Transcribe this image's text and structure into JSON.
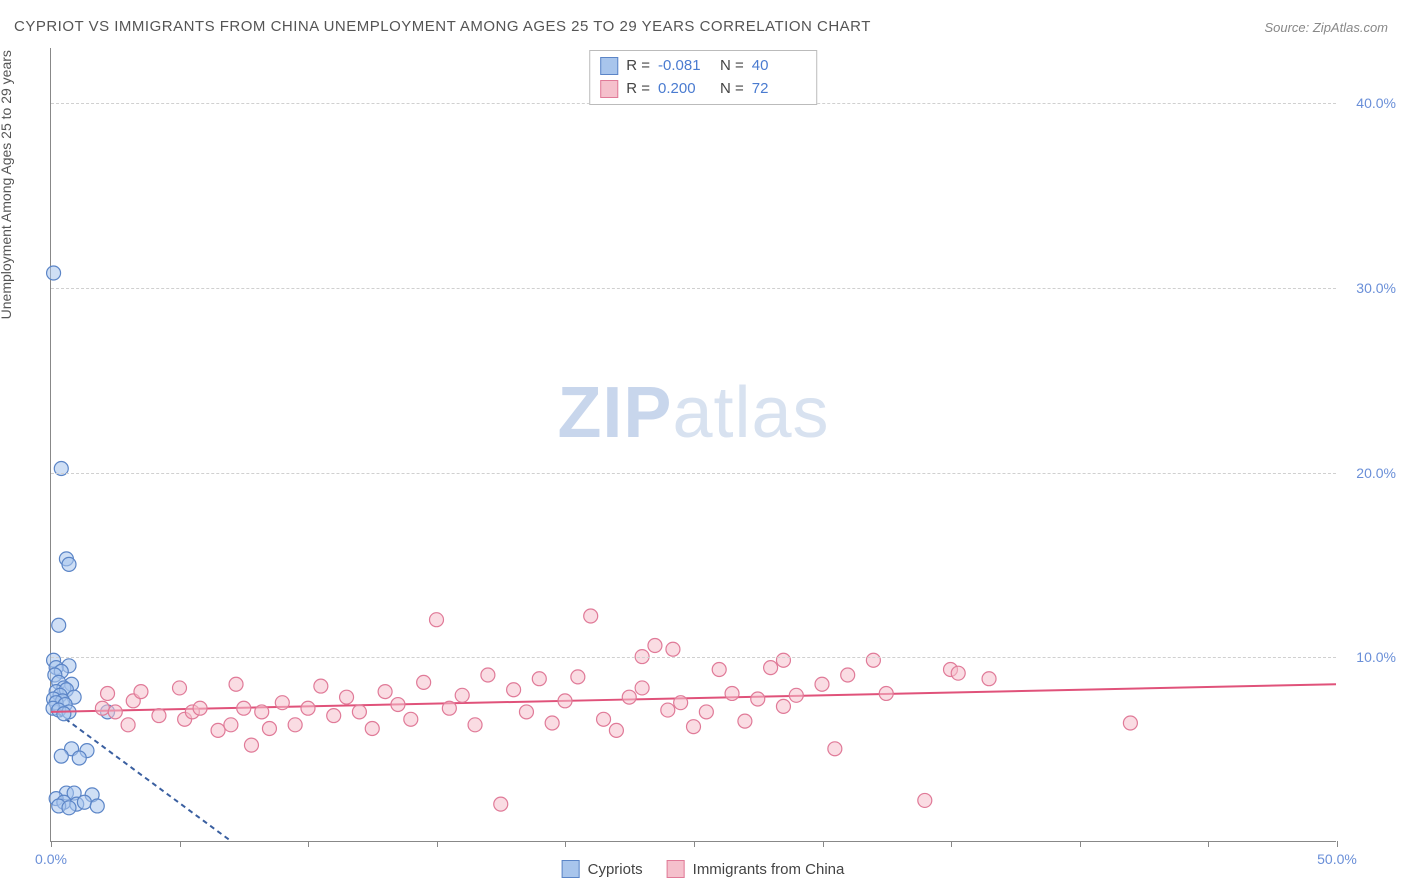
{
  "title": "CYPRIOT VS IMMIGRANTS FROM CHINA UNEMPLOYMENT AMONG AGES 25 TO 29 YEARS CORRELATION CHART",
  "source": "Source: ZipAtlas.com",
  "watermark_a": "ZIP",
  "watermark_b": "atlas",
  "y_axis_label": "Unemployment Among Ages 25 to 29 years",
  "chart": {
    "type": "scatter-with-regression",
    "background_color": "#ffffff",
    "grid_color": "#d0d0d0",
    "axis_color": "#888888",
    "tick_label_color": "#6a8fd8",
    "xlim": [
      0,
      50
    ],
    "ylim": [
      0,
      43
    ],
    "x_ticks": [
      0,
      5,
      10,
      15,
      20,
      25,
      30,
      35,
      40,
      45,
      50
    ],
    "x_tick_labels": {
      "0": "0.0%",
      "50": "50.0%"
    },
    "y_ticks": [
      10,
      20,
      30,
      40
    ],
    "y_tick_labels": {
      "10": "10.0%",
      "20": "20.0%",
      "30": "30.0%",
      "40": "40.0%"
    },
    "series": [
      {
        "name": "Cypriots",
        "marker_fill": "#a8c5ec",
        "marker_stroke": "#5b85c7",
        "marker_fill_opacity": 0.55,
        "marker_radius": 7,
        "regression_color": "#3a5fa0",
        "regression_dash": "5,4",
        "regression": {
          "x1": 0,
          "y1": 7.2,
          "x2": 7,
          "y2": 0
        },
        "R_label": "R =",
        "R": "-0.081",
        "N_label": "N =",
        "N": "40",
        "points": [
          [
            0.1,
            30.8
          ],
          [
            0.4,
            20.2
          ],
          [
            0.6,
            15.3
          ],
          [
            0.7,
            15.0
          ],
          [
            0.3,
            11.7
          ],
          [
            0.1,
            9.8
          ],
          [
            0.7,
            9.5
          ],
          [
            0.2,
            9.4
          ],
          [
            0.4,
            9.2
          ],
          [
            0.15,
            9.0
          ],
          [
            0.3,
            8.6
          ],
          [
            0.8,
            8.5
          ],
          [
            0.5,
            8.3
          ],
          [
            0.2,
            8.1
          ],
          [
            0.6,
            8.2
          ],
          [
            0.35,
            7.9
          ],
          [
            0.9,
            7.8
          ],
          [
            0.1,
            7.7
          ],
          [
            0.45,
            7.6
          ],
          [
            0.2,
            7.5
          ],
          [
            0.55,
            7.4
          ],
          [
            0.08,
            7.2
          ],
          [
            0.3,
            7.1
          ],
          [
            0.7,
            7.0
          ],
          [
            0.5,
            6.9
          ],
          [
            2.2,
            7.0
          ],
          [
            0.8,
            5.0
          ],
          [
            1.4,
            4.9
          ],
          [
            0.4,
            4.6
          ],
          [
            1.1,
            4.5
          ],
          [
            0.6,
            2.6
          ],
          [
            0.9,
            2.6
          ],
          [
            1.6,
            2.5
          ],
          [
            0.2,
            2.3
          ],
          [
            0.5,
            2.1
          ],
          [
            1.0,
            2.0
          ],
          [
            1.3,
            2.1
          ],
          [
            0.3,
            1.9
          ],
          [
            0.7,
            1.8
          ],
          [
            1.8,
            1.9
          ]
        ]
      },
      {
        "name": "Immigrants from China",
        "marker_fill": "#f5c0cc",
        "marker_stroke": "#e07a98",
        "marker_fill_opacity": 0.55,
        "marker_radius": 7,
        "regression_color": "#e0527a",
        "regression_dash": "none",
        "regression": {
          "x1": 0,
          "y1": 7.0,
          "x2": 50,
          "y2": 8.5
        },
        "R_label": "R =",
        "R": "0.200",
        "N_label": "N =",
        "N": "72",
        "points": [
          [
            2.0,
            7.2
          ],
          [
            2.5,
            7.0
          ],
          [
            2.2,
            8.0
          ],
          [
            3.0,
            6.3
          ],
          [
            3.2,
            7.6
          ],
          [
            3.5,
            8.1
          ],
          [
            4.2,
            6.8
          ],
          [
            5.0,
            8.3
          ],
          [
            5.2,
            6.6
          ],
          [
            5.5,
            7.0
          ],
          [
            5.8,
            7.2
          ],
          [
            6.5,
            6.0
          ],
          [
            7.0,
            6.3
          ],
          [
            7.2,
            8.5
          ],
          [
            7.5,
            7.2
          ],
          [
            7.8,
            5.2
          ],
          [
            8.2,
            7.0
          ],
          [
            8.5,
            6.1
          ],
          [
            9.0,
            7.5
          ],
          [
            9.5,
            6.3
          ],
          [
            10.0,
            7.2
          ],
          [
            10.5,
            8.4
          ],
          [
            11.0,
            6.8
          ],
          [
            11.5,
            7.8
          ],
          [
            12.0,
            7.0
          ],
          [
            12.5,
            6.1
          ],
          [
            13.0,
            8.1
          ],
          [
            13.5,
            7.4
          ],
          [
            14.0,
            6.6
          ],
          [
            14.5,
            8.6
          ],
          [
            15.0,
            12.0
          ],
          [
            15.5,
            7.2
          ],
          [
            16.0,
            7.9
          ],
          [
            16.5,
            6.3
          ],
          [
            17.0,
            9.0
          ],
          [
            17.5,
            2.0
          ],
          [
            18.0,
            8.2
          ],
          [
            18.5,
            7.0
          ],
          [
            19.0,
            8.8
          ],
          [
            19.5,
            6.4
          ],
          [
            20.0,
            7.6
          ],
          [
            20.5,
            8.9
          ],
          [
            21.0,
            12.2
          ],
          [
            21.5,
            6.6
          ],
          [
            22.0,
            6.0
          ],
          [
            22.5,
            7.8
          ],
          [
            23.0,
            8.3
          ],
          [
            23.5,
            10.6
          ],
          [
            24.0,
            7.1
          ],
          [
            24.2,
            10.4
          ],
          [
            25.0,
            6.2
          ],
          [
            25.5,
            7.0
          ],
          [
            26.0,
            9.3
          ],
          [
            26.5,
            8.0
          ],
          [
            27.0,
            6.5
          ],
          [
            27.5,
            7.7
          ],
          [
            28.0,
            9.4
          ],
          [
            28.5,
            9.8
          ],
          [
            29.0,
            7.9
          ],
          [
            30.0,
            8.5
          ],
          [
            30.5,
            5.0
          ],
          [
            31.0,
            9.0
          ],
          [
            32.0,
            9.8
          ],
          [
            32.5,
            8.0
          ],
          [
            34.0,
            2.2
          ],
          [
            35.0,
            9.3
          ],
          [
            35.3,
            9.1
          ],
          [
            36.5,
            8.8
          ],
          [
            42.0,
            6.4
          ],
          [
            28.5,
            7.3
          ],
          [
            23.0,
            10.0
          ],
          [
            24.5,
            7.5
          ]
        ]
      }
    ]
  },
  "bottom_legend": [
    {
      "swatch": "blue",
      "label": "Cypriots"
    },
    {
      "swatch": "pink",
      "label": "Immigrants from China"
    }
  ]
}
